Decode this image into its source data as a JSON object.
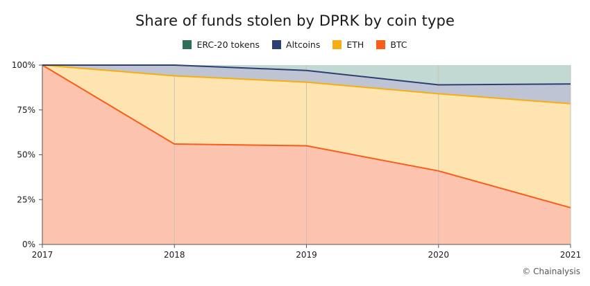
{
  "chart_data": {
    "type": "area",
    "stacked": true,
    "percent": true,
    "title": "Share of funds stolen by DPRK by coin type",
    "x": [
      "2017",
      "2018",
      "2019",
      "2020",
      "2021"
    ],
    "y_ticks": [
      "0%",
      "25%",
      "50%",
      "75%",
      "100%"
    ],
    "ylim": [
      0,
      100
    ],
    "legend_position": "top-center",
    "grid": true,
    "series": [
      {
        "name": "BTC",
        "color": "#f95d1b",
        "fill": "#fcc4ae",
        "values": [
          100,
          56,
          55,
          41,
          20.5
        ]
      },
      {
        "name": "ETH",
        "color": "#f7ad10",
        "fill": "#fde4b0",
        "values": [
          0,
          38,
          35.5,
          43,
          58
        ]
      },
      {
        "name": "Altcoins",
        "color": "#2c3f73",
        "fill": "#bfc4d5",
        "values": [
          0,
          6,
          6.5,
          5,
          11
        ]
      },
      {
        "name": "ERC-20 tokens",
        "color": "#2f6e5d",
        "fill": "#c1d9d2",
        "values": [
          0,
          0,
          3,
          11,
          10.5
        ]
      }
    ],
    "legend_order": [
      "ERC-20 tokens",
      "Altcoins",
      "ETH",
      "BTC"
    ]
  },
  "credit": "© Chainalysis"
}
